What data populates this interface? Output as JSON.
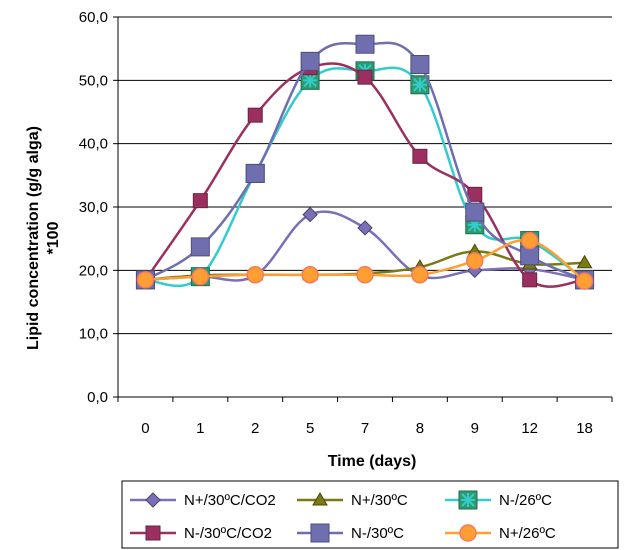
{
  "chart_data": {
    "type": "line",
    "title": "",
    "xlabel": "Time (days)",
    "ylabel_line1": "Lipid concentration (g/g alga)",
    "ylabel_line2": "*100",
    "categories": [
      "0",
      "1",
      "2",
      "5",
      "7",
      "8",
      "9",
      "12",
      "18"
    ],
    "ylim": [
      0,
      60
    ],
    "yticks": [
      "0,0",
      "10,0",
      "20,0",
      "30,0",
      "40,0",
      "50,0",
      "60,0"
    ],
    "grid": "horizontal",
    "legend_position": "bottom",
    "series": [
      {
        "name": "N+/30ºC/CO2",
        "color": "#7B6FB8",
        "marker": "diamond",
        "values": [
          18.5,
          19.0,
          19.2,
          28.8,
          26.7,
          19.2,
          20.0,
          20.2,
          18.5
        ]
      },
      {
        "name": "N+/30ºC",
        "color": "#7A7A12",
        "marker": "triangle",
        "values": [
          18.5,
          19.2,
          19.3,
          19.3,
          19.5,
          20.5,
          23.0,
          21.0,
          21.2
        ]
      },
      {
        "name": "N-/26ºC",
        "color": "#33CCCC",
        "marker": "asterisk-square",
        "values": [
          18.5,
          19.0,
          35.3,
          50.0,
          51.5,
          49.3,
          27.2,
          24.7,
          18.5
        ]
      },
      {
        "name": "N-/30ºC/CO2",
        "color": "#9B2F5F",
        "marker": "square",
        "values": [
          18.5,
          31.0,
          44.5,
          52.0,
          50.5,
          38.0,
          32.0,
          18.5,
          18.5
        ]
      },
      {
        "name": "N-/30ºC",
        "color": "#6F6FB0",
        "marker": "big-square",
        "values": [
          18.5,
          23.7,
          35.3,
          53.0,
          55.7,
          52.5,
          29.2,
          22.3,
          18.5
        ]
      },
      {
        "name": "N+/26ºC",
        "color": "#FF9F33",
        "marker": "circle",
        "values": [
          18.5,
          19.0,
          19.3,
          19.3,
          19.3,
          19.3,
          21.5,
          24.7,
          18.3
        ]
      }
    ]
  }
}
